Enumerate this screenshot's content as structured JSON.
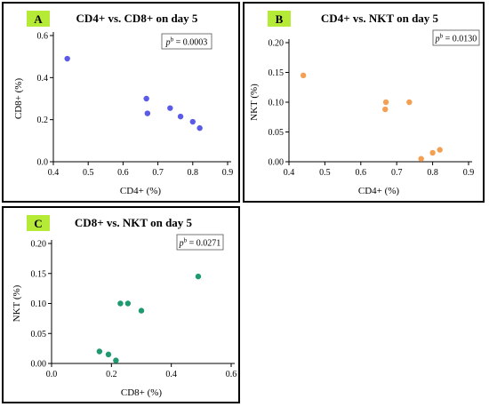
{
  "chart_data": [
    {
      "type": "scatter",
      "panel_label": "A",
      "title": "CD4+ vs. CD8+ on day 5",
      "xlabel": "CD4+ (%)",
      "ylabel": "CD8+ (%)",
      "xlim": [
        0.4,
        0.9
      ],
      "ylim": [
        0.0,
        0.6
      ],
      "xticks": [
        0.4,
        0.5,
        0.6,
        0.7,
        0.8,
        0.9
      ],
      "yticks": [
        0.0,
        0.2,
        0.4,
        0.6
      ],
      "xtick_labels": [
        "0.4",
        "0.5",
        "0.6",
        "0.7",
        "0.8",
        "0.9"
      ],
      "ytick_labels": [
        "0.0",
        "0.2",
        "0.4",
        "0.6"
      ],
      "p_prefix": "p",
      "p_superscript": "b",
      "p_value": " = 0.0003",
      "color": "#5b5be8",
      "points": [
        {
          "x": 0.44,
          "y": 0.49
        },
        {
          "x": 0.667,
          "y": 0.3
        },
        {
          "x": 0.67,
          "y": 0.23
        },
        {
          "x": 0.735,
          "y": 0.255
        },
        {
          "x": 0.765,
          "y": 0.215
        },
        {
          "x": 0.8,
          "y": 0.19
        },
        {
          "x": 0.82,
          "y": 0.16
        }
      ]
    },
    {
      "type": "scatter",
      "panel_label": "B",
      "title": "CD4+ vs. NKT on day 5",
      "xlabel": "CD4+ (%)",
      "ylabel": "NKT (%)",
      "xlim": [
        0.4,
        0.9
      ],
      "ylim": [
        0.0,
        0.2
      ],
      "xticks": [
        0.4,
        0.5,
        0.6,
        0.7,
        0.8,
        0.9
      ],
      "yticks": [
        0.0,
        0.05,
        0.1,
        0.15,
        0.2
      ],
      "xtick_labels": [
        "0.4",
        "0.5",
        "0.6",
        "0.7",
        "0.8",
        "0.9"
      ],
      "ytick_labels": [
        "0.00",
        "0.05",
        "0.10",
        "0.15",
        "0.20"
      ],
      "p_prefix": "p",
      "p_superscript": "b",
      "p_value": " = 0.0130",
      "color": "#f4a054",
      "points": [
        {
          "x": 0.44,
          "y": 0.145
        },
        {
          "x": 0.668,
          "y": 0.088
        },
        {
          "x": 0.67,
          "y": 0.1
        },
        {
          "x": 0.735,
          "y": 0.1
        },
        {
          "x": 0.768,
          "y": 0.005
        },
        {
          "x": 0.8,
          "y": 0.015
        },
        {
          "x": 0.82,
          "y": 0.02
        }
      ]
    },
    {
      "type": "scatter",
      "panel_label": "C",
      "title": "CD8+ vs. NKT on day 5",
      "xlabel": "CD8+ (%)",
      "ylabel": "NKT (%)",
      "xlim": [
        0.0,
        0.6
      ],
      "ylim": [
        0.0,
        0.2
      ],
      "xticks": [
        0.0,
        0.2,
        0.4,
        0.6
      ],
      "yticks": [
        0.0,
        0.05,
        0.1,
        0.15,
        0.2
      ],
      "xtick_labels": [
        "0.0",
        "0.2",
        "0.4",
        "0.6"
      ],
      "ytick_labels": [
        "0.00",
        "0.05",
        "0.10",
        "0.15",
        "0.20"
      ],
      "p_prefix": "p",
      "p_superscript": "b",
      "p_value": " = 0.0271",
      "color": "#1f9a6e",
      "points": [
        {
          "x": 0.49,
          "y": 0.145
        },
        {
          "x": 0.23,
          "y": 0.1
        },
        {
          "x": 0.255,
          "y": 0.1
        },
        {
          "x": 0.3,
          "y": 0.088
        },
        {
          "x": 0.16,
          "y": 0.02
        },
        {
          "x": 0.19,
          "y": 0.015
        },
        {
          "x": 0.215,
          "y": 0.005
        }
      ]
    }
  ]
}
